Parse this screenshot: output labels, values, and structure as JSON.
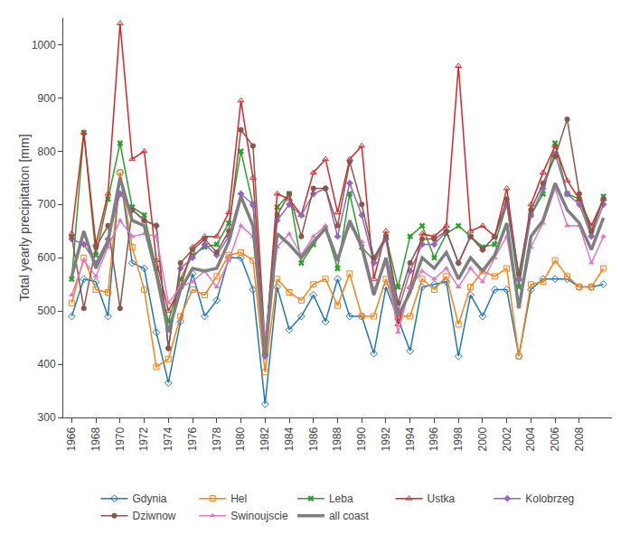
{
  "chart_data": {
    "type": "line",
    "ylabel": "Total yearly precipitation [mm]",
    "x": [
      1966,
      1967,
      1968,
      1969,
      1970,
      1971,
      1972,
      1973,
      1974,
      1975,
      1976,
      1977,
      1978,
      1979,
      1980,
      1981,
      1982,
      1983,
      1984,
      1985,
      1986,
      1987,
      1988,
      1989,
      1990,
      1991,
      1992,
      1993,
      1994,
      1995,
      1996,
      1997,
      1998,
      1999,
      2000,
      2001,
      2002,
      2003,
      2004,
      2005,
      2006,
      2007,
      2008,
      2009,
      2010
    ],
    "series": [
      {
        "name": "Gdynia",
        "marker": "diamond-open",
        "line_style": "solid",
        "values": [
          490,
          560,
          555,
          490,
          760,
          590,
          580,
          460,
          365,
          480,
          570,
          490,
          520,
          600,
          600,
          540,
          325,
          545,
          465,
          490,
          530,
          480,
          560,
          490,
          490,
          420,
          545,
          485,
          425,
          545,
          550,
          555,
          415,
          530,
          490,
          540,
          540,
          415,
          540,
          560,
          560,
          560,
          545,
          545,
          550
        ]
      },
      {
        "name": "Hel",
        "marker": "square-open",
        "line_style": "solid",
        "values": [
          515,
          600,
          540,
          535,
          760,
          620,
          540,
          395,
          410,
          490,
          540,
          530,
          565,
          605,
          610,
          595,
          385,
          560,
          535,
          520,
          550,
          560,
          510,
          570,
          490,
          490,
          560,
          490,
          490,
          560,
          540,
          565,
          475,
          545,
          575,
          565,
          580,
          415,
          550,
          555,
          595,
          565,
          545,
          545,
          580
        ]
      },
      {
        "name": "Leba",
        "marker": "x",
        "line_style": "solid",
        "values": [
          560,
          835,
          605,
          710,
          815,
          695,
          680,
          580,
          480,
          560,
          605,
          620,
          625,
          665,
          800,
          700,
          420,
          695,
          720,
          590,
          625,
          655,
          580,
          720,
          620,
          595,
          640,
          545,
          640,
          660,
          600,
          645,
          660,
          640,
          620,
          625,
          700,
          545,
          680,
          720,
          815,
          720,
          710,
          645,
          715
        ]
      },
      {
        "name": "Ustka",
        "marker": "triangle-up-open",
        "line_style": "solid",
        "values": [
          645,
          835,
          625,
          720,
          1040,
          785,
          800,
          595,
          500,
          545,
          620,
          640,
          640,
          685,
          895,
          750,
          420,
          720,
          710,
          680,
          760,
          785,
          685,
          785,
          810,
          560,
          650,
          475,
          545,
          645,
          640,
          660,
          960,
          650,
          660,
          640,
          730,
          560,
          700,
          760,
          810,
          745,
          710,
          660,
          710
        ]
      },
      {
        "name": "Kolobrzeg",
        "marker": "diamond",
        "line_style": "solid",
        "values": [
          635,
          625,
          590,
          635,
          720,
          690,
          670,
          660,
          430,
          580,
          600,
          625,
          605,
          640,
          720,
          700,
          415,
          670,
          700,
          680,
          720,
          730,
          640,
          740,
          680,
          590,
          635,
          500,
          575,
          625,
          625,
          650,
          590,
          640,
          615,
          640,
          700,
          560,
          680,
          730,
          795,
          720,
          700,
          640,
          700
        ]
      },
      {
        "name": "Dziwnow",
        "marker": "circle",
        "line_style": "solid",
        "values": [
          640,
          505,
          620,
          660,
          505,
          690,
          670,
          660,
          430,
          590,
          615,
          635,
          610,
          650,
          840,
          810,
          440,
          680,
          720,
          640,
          730,
          730,
          660,
          780,
          700,
          600,
          640,
          515,
          590,
          635,
          635,
          650,
          590,
          640,
          615,
          640,
          710,
          570,
          690,
          740,
          790,
          860,
          720,
          650,
          710
        ]
      },
      {
        "name": "Swinoujscie",
        "marker": "triangle-up",
        "line_style": "solid",
        "values": [
          530,
          595,
          565,
          620,
          670,
          640,
          645,
          640,
          515,
          545,
          555,
          575,
          545,
          595,
          660,
          640,
          450,
          620,
          645,
          605,
          640,
          660,
          595,
          660,
          630,
          540,
          590,
          460,
          545,
          575,
          560,
          580,
          545,
          580,
          555,
          600,
          640,
          510,
          620,
          665,
          730,
          660,
          660,
          590,
          640
        ]
      },
      {
        "name": "all coast",
        "marker": "none",
        "line_style": "solid",
        "values": [
          565,
          650,
          580,
          630,
          750,
          670,
          660,
          570,
          460,
          540,
          580,
          575,
          580,
          630,
          715,
          660,
          415,
          645,
          625,
          600,
          630,
          655,
          595,
          670,
          620,
          530,
          600,
          490,
          535,
          600,
          580,
          610,
          560,
          600,
          575,
          605,
          665,
          505,
          640,
          670,
          740,
          690,
          665,
          615,
          675
        ]
      }
    ],
    "xlim": [
      1965.3,
      2010.7
    ],
    "xticks": [
      1966,
      1968,
      1970,
      1972,
      1974,
      1976,
      1978,
      1980,
      1982,
      1984,
      1986,
      1988,
      1990,
      1992,
      1994,
      1996,
      1998,
      2000,
      2002,
      2004,
      2006,
      2008
    ],
    "ylim": [
      300,
      1050
    ],
    "yticks": [
      300,
      400,
      500,
      600,
      700,
      800,
      900,
      1000
    ],
    "grid": false,
    "legend": "bottom"
  }
}
